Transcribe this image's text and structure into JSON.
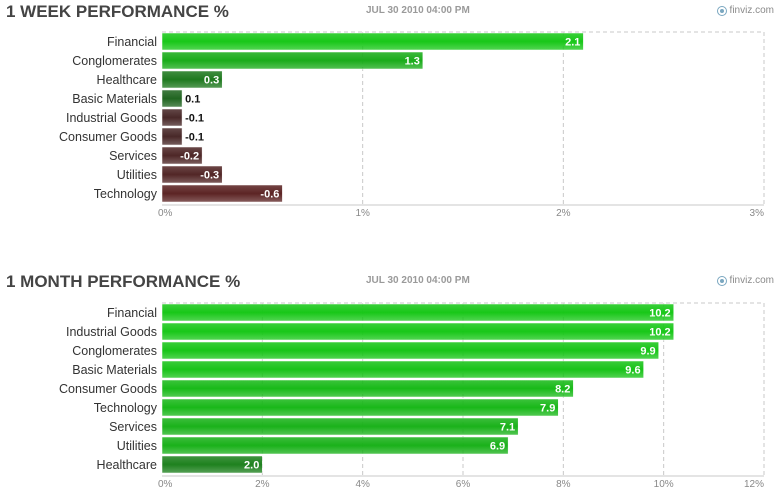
{
  "colors": {
    "positive_strong": "#18c718",
    "positive_weak": "#234a23",
    "negative_weak": "#3a2a2a",
    "negative_strong": "#7a1f1f",
    "grid": "#c8c8c8",
    "title": "#444444"
  },
  "panels": [
    {
      "title": "1 WEEK PERFORMANCE %",
      "date": "JUL 30 2010 04:00 PM",
      "credit": "finviz.com",
      "credit_icon": "finviz-logo-icon"
    },
    {
      "title": "1 MONTH PERFORMANCE %",
      "date": "JUL 30 2010 04:00 PM",
      "credit": "finviz.com",
      "credit_icon": "finviz-logo-icon"
    }
  ],
  "chart_data": [
    {
      "type": "bar",
      "orientation": "horizontal",
      "title": "1 WEEK PERFORMANCE %",
      "categories": [
        "Financial",
        "Conglomerates",
        "Healthcare",
        "Basic Materials",
        "Industrial Goods",
        "Consumer Goods",
        "Services",
        "Utilities",
        "Technology"
      ],
      "values": [
        2.1,
        1.3,
        0.3,
        0.1,
        -0.1,
        -0.1,
        -0.2,
        -0.3,
        -0.6
      ],
      "value_labels": [
        "2.1",
        "1.3",
        "0.3",
        "0.1",
        "-0.1",
        "-0.1",
        "-0.2",
        "-0.3",
        "-0.6"
      ],
      "xlim": [
        0,
        3
      ],
      "xticks": [
        0,
        1,
        2,
        3
      ],
      "xtick_labels": [
        "0%",
        "1%",
        "2%",
        "3%"
      ],
      "bar_length": "absolute value",
      "grid": true
    },
    {
      "type": "bar",
      "orientation": "horizontal",
      "title": "1 MONTH PERFORMANCE %",
      "categories": [
        "Financial",
        "Industrial Goods",
        "Conglomerates",
        "Basic Materials",
        "Consumer Goods",
        "Technology",
        "Services",
        "Utilities",
        "Healthcare"
      ],
      "values": [
        10.2,
        10.2,
        9.9,
        9.6,
        8.2,
        7.9,
        7.1,
        6.9,
        2.0
      ],
      "value_labels": [
        "10.2",
        "10.2",
        "9.9",
        "9.6",
        "8.2",
        "7.9",
        "7.1",
        "6.9",
        "2.0"
      ],
      "xlim": [
        0,
        12
      ],
      "xticks": [
        0,
        2,
        4,
        6,
        8,
        10,
        12
      ],
      "xtick_labels": [
        "0%",
        "2%",
        "4%",
        "6%",
        "8%",
        "10%",
        "12%"
      ],
      "bar_length": "absolute value",
      "grid": true
    }
  ]
}
